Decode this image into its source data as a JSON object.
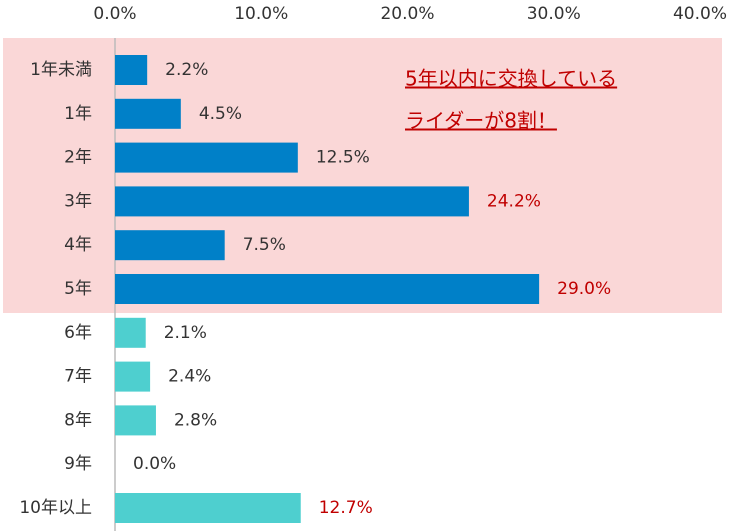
{
  "chart_data": {
    "type": "bar",
    "orientation": "horizontal",
    "categories": [
      "1年未満",
      "1年",
      "2年",
      "3年",
      "4年",
      "5年",
      "6年",
      "7年",
      "8年",
      "9年",
      "10年以上"
    ],
    "values": [
      2.2,
      4.5,
      12.5,
      24.2,
      7.5,
      29.0,
      2.1,
      2.4,
      2.8,
      0.0,
      12.7
    ],
    "value_labels": [
      "2.2%",
      "4.5%",
      "12.5%",
      "24.2%",
      "7.5%",
      "29.0%",
      "2.1%",
      "2.4%",
      "2.8%",
      "0.0%",
      "12.7%"
    ],
    "colors": [
      "#0080c8",
      "#0080c8",
      "#0080c8",
      "#0080c8",
      "#0080c8",
      "#0080c8",
      "#4ecfcf",
      "#4ecfcf",
      "#4ecfcf",
      "#4ecfcf",
      "#4ecfcf"
    ],
    "value_label_colors": [
      "#333333",
      "#333333",
      "#333333",
      "#c00000",
      "#333333",
      "#c00000",
      "#333333",
      "#333333",
      "#333333",
      "#333333",
      "#c00000"
    ],
    "xlim": [
      0,
      40
    ],
    "xticks": [
      {
        "value": 0,
        "label": "0.0%"
      },
      {
        "value": 10,
        "label": "10.0%"
      },
      {
        "value": 20,
        "label": "20.0%"
      },
      {
        "value": 30,
        "label": "30.0%"
      },
      {
        "value": 40,
        "label": "40.0%"
      }
    ],
    "grid": false,
    "annotations": [
      "5年以内に交換している",
      "ライダーが8割！"
    ]
  }
}
